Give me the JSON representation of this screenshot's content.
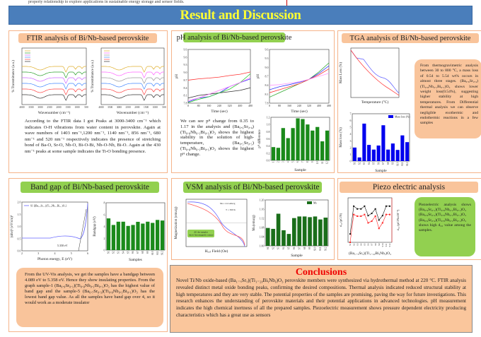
{
  "top_strip": "property relationship to explore applications in sustainable energy storage and sensor fields.",
  "banner": {
    "title": "Result and Discussion",
    "color": "#4a7ebb",
    "title_color": "#ffff33"
  },
  "ftir": {
    "title": "FTIR analysis of  Bi/Nb-based perovskite",
    "ylabel": "% Transmittance (a.u.)",
    "xlabel": "Wavenumber (cm⁻¹)",
    "xticks": [
      "4000",
      "3500",
      "3000",
      "2500",
      "2000",
      "1500",
      "1000",
      "500"
    ],
    "text": "According to the FTIR data I got Peaks at 3000-3400 cm⁻¹ which indicates O-H vibrations from water content in perovskite. Again at wave numbers of 1403 nm⁻¹,1200 nm⁻¹, 1140 nm⁻¹, 856 nm⁻¹, 680 nm⁻¹ and 520 nm⁻¹ respectively indicates the presence of stretching bond of Ba-O, Sr-O, Nb-O, Bi-O-Bi, Nb-O-Nb, Bi-O. Again at the 430 nm⁻¹ peaks at some sample indicates the Ti-O bonding presence."
  },
  "ph": {
    "title": "pH analysis of  Bi/Nb-based perovskite",
    "text": "We can see pᴴ change from 0.35 to 1.17 in the analysis and (Ba₀.₆Sr₀.₄)(Ti₀.₈Nb₀.₁Bi₀.₁)O₃ shows the highest stability in the solution of high-temperature, (Ba₀.₅Sr₀.₅)(Ti₀.₈Nb₀.₁Bi₀.₁)O₃ shows the highest pᴴ change."
  },
  "tga": {
    "title": "TGA analysis of  Bi/Nb-based perovskite",
    "text": "From thermogravimetric analysis between 30 to 800 °C, a mass loss of 0.54 to 5.54 wt% occurs in almost three stages. (Ba₀.₆Sr₀.₄)(Ti₀.₈Nb₀.₁Bi₀.₁)O₃ shows lower weight loss(0.54%), suggesting higher stability at high temperatures. From Differential thermal analysis we can observe negligible exothermic and endothermic reactions in a few samples"
  },
  "bandgap": {
    "title": "Band gap of  Bi/Nb-based perovskite",
    "legend": "S1 [(Ba₀.₉Sr₀.₁)(Ti₀.₈Nb₀.₁Bi₀.₁)O₃]",
    "annotation": "5.358 eV",
    "xlabel": "Photon energy, E (eV)",
    "ylabel": "(αhν)² (eV/cm)²",
    "xticks": [
      "2",
      "3",
      "4",
      "5",
      "6"
    ],
    "yticks": [
      "0.0",
      "0.5",
      "1.0",
      "1.5",
      "2.0"
    ],
    "text": "From the UV-Vis analysis, we get the samples have a bandgap between 4.089 eV to 5.358 eV. Hence they show insulating properties. From the graph sample-1 (Ba₀.₉Sr₀.₁)(Ti₀.₈Nb₀.₁Bi₀.₁)O₃ has the highest value of band gap and the sample-5 (Ba₀.₇Sr₀.₃)(Ti₀.₈Nb₀.₁Bi₀.₁)O₃ has the lowest band gap value. As all the samples have band gap over 4, so it would work as a moderate insulator"
  },
  "vsm": {
    "title": "VSM analysis of  Bi/Nb-based perovskite",
    "ylabel": "Magnetization (emu/g)",
    "xlabel": "Hₑₓₜ Field (Oe)",
    "note": "Mₛ=1.14 emu/g",
    "temp": "T = 300 K",
    "callout": "All the samples show ferromagnetic nature"
  },
  "piezo": {
    "title": "Piezo electric analysis",
    "ylabel_left": "d₃₃ (pC/N)",
    "ylabel_right": "d₃₃ (pC/Nx10⁻²)",
    "xlabel": "(Ba₁₋ₓSrₓ)(Ti₁₋₂ᵧBiᵧNbᵧ)O₃",
    "text": "Piezoelectric analysis shows (Ba₀.₉Sr₀.₁)(Ti₀.₈Nb₀.₁Bi₀.₁)O₃ (Ba₀.₈Sr₀.₂)(Ti₀.₈Nb₀.₁Bi₀.₁)O₃ (Ba₀.₆Sr₀.₄)(Ti₀.₈Nb₀.₁Bi₀.₁)O₃ shows high d₃₃ value among the samples."
  },
  "conclusions": {
    "title": "Conclusions",
    "text": "Novel Ti/Nb oxide-based (Ba₁₋ₓSrₓ)(Ti₁₋₂ᵧBiᵧNbᵧ)O₃ perovskite members were synthesized via hydrothermal method at 220 °C. FTIR analysis revealed distinct metal oxide bonding peaks, confirming the desired compositions. Thermal analysis indicated reduced structural stability at high temperatures and they are very stable. The potential properties of the samples are promising, paving the way for future investigations. This research enhances the understanding of perovskite materials and their potential applications in advanced technologies. pH measurement indicates the high chemical inertness of all the prepared samples. Piezoelectric measurement shows pressure dependent electricity producing characteristics which has a great use as sensors"
  },
  "chart_data": [
    {
      "id": "ph_bar",
      "type": "bar",
      "ylabel": "pᴴ difference",
      "xlabel": "Sample",
      "categories": [
        "1",
        "2",
        "3",
        "4",
        "5",
        "6",
        "7",
        "8",
        "9",
        "10",
        "11",
        "12"
      ],
      "values": [
        0.37,
        0.35,
        0.9,
        0.62,
        0.9,
        1.17,
        1.15,
        1.0,
        0.83,
        0.93,
        0.53,
        0.83
      ],
      "ylim": [
        0,
        1.2
      ],
      "yticks": [
        "0.0",
        "0.2",
        "0.4",
        "0.6",
        "0.8",
        "1.0",
        "1.2"
      ],
      "color": "#1a8a1a"
    },
    {
      "id": "tga_bar",
      "type": "bar",
      "ylabel": "Mass loss (%)",
      "xlabel": "Sample",
      "legend": "Mass loss (%)",
      "categories": [
        "S1",
        "S2",
        "S3",
        "S4",
        "S5",
        "S6",
        "S7",
        "S8",
        "S9",
        "S10",
        "S11",
        "S12"
      ],
      "values": [
        2.0,
        0.54,
        5.54,
        2.39,
        1.7,
        2.3,
        5.3,
        1.7,
        2.6,
        1.65,
        3.8,
        2.8
      ],
      "ylim": [
        0,
        7
      ],
      "yticks": [
        "0",
        "1",
        "2",
        "3",
        "4",
        "5",
        "6",
        "7"
      ],
      "color": "#0000ee"
    },
    {
      "id": "bandgap_bar",
      "type": "bar",
      "ylabel": "Bandgap (eV)",
      "xlabel": "Samples",
      "categories": [
        "S1",
        "S2",
        "S3",
        "S4",
        "S5",
        "S6",
        "S7",
        "S8",
        "S9",
        "S10",
        "S11",
        "S12"
      ],
      "values": [
        5.358,
        4.25,
        4.8,
        4.8,
        4.089,
        4.25,
        4.78,
        4.48,
        4.8,
        4.6,
        5.1,
        5.0
      ],
      "ylim": [
        0,
        8
      ],
      "yticks": [
        "0",
        "2",
        "4",
        "6",
        "8"
      ],
      "color": "#1a8a1a"
    },
    {
      "id": "vsm_bar",
      "type": "bar",
      "ylabel": "Mₛ(emu/g)",
      "xlabel": "Sample",
      "legend": "Ms",
      "categories": [
        "S1",
        "S2",
        "S3",
        "S4",
        "S5",
        "S6",
        "S7",
        "S8",
        "S9",
        "S10",
        "S11",
        "S12"
      ],
      "values": [
        1.078,
        1.074,
        1.14,
        1.068,
        1.052,
        1.121,
        1.128,
        1.128,
        1.125,
        1.128,
        1.115,
        1.123
      ],
      "ylim": [
        1.0,
        1.2
      ],
      "yticks": [
        "1.00",
        "1.04",
        "1.08",
        "1.12",
        "1.16",
        "1.20"
      ],
      "color": "#1a6e1a"
    },
    {
      "id": "ph_line_1",
      "type": "line",
      "xlabel": "Time (sec)",
      "ylabel": "pH",
      "xlim": [
        0,
        480
      ],
      "ylim": [
        7.8,
        9.9
      ],
      "xticks": [
        "0",
        "80",
        "160",
        "240",
        "320",
        "400",
        "480"
      ],
      "yticks": [
        "7.8",
        "8.1",
        "8.4",
        "8.7",
        "9.0",
        "9.3",
        "9.6",
        "9.9"
      ],
      "series": [
        {
          "color": "#333333",
          "x": [
            0,
            80,
            160,
            240,
            320,
            400,
            480
          ],
          "y": [
            8.0,
            8.1,
            8.15,
            8.2,
            8.25,
            8.3,
            8.4
          ]
        },
        {
          "color": "#ff3333",
          "x": [
            0,
            80,
            160,
            240,
            320,
            400,
            480
          ],
          "y": [
            8.7,
            8.75,
            8.78,
            8.82,
            8.88,
            8.93,
            9.02
          ]
        },
        {
          "color": "#3333ff",
          "x": [
            0,
            80,
            160,
            240,
            320,
            400,
            480
          ],
          "y": [
            7.85,
            8.0,
            8.05,
            8.2,
            8.45,
            8.6,
            8.75
          ]
        },
        {
          "color": "#33cc33",
          "x": [
            0,
            80,
            160,
            240,
            320,
            400,
            480
          ],
          "y": [
            7.82,
            7.95,
            8.05,
            8.2,
            8.35,
            8.6,
            8.95
          ]
        },
        {
          "color": "#ff77ff",
          "x": [
            0,
            80,
            160,
            240,
            320,
            400,
            480
          ],
          "y": [
            7.9,
            8.0,
            8.15,
            8.3,
            8.45,
            8.6,
            8.8
          ]
        }
      ]
    },
    {
      "id": "ph_line_2",
      "type": "line",
      "xlabel": "Time (sec)",
      "ylabel": "pH",
      "xlim": [
        0,
        480
      ],
      "ylim": [
        7.8,
        9.6
      ],
      "xticks": [
        "0",
        "80",
        "160",
        "240",
        "320",
        "400",
        "480"
      ],
      "yticks": [
        "7.8",
        "8.1",
        "8.4",
        "8.7",
        "9.0",
        "9.3",
        "9.6"
      ],
      "series": [
        {
          "color": "#33aa33",
          "x": [
            0,
            80,
            160,
            240,
            320,
            400,
            480
          ],
          "y": [
            8.0,
            8.15,
            8.3,
            8.45,
            8.6,
            8.85,
            9.15
          ]
        },
        {
          "color": "#3333ff",
          "x": [
            0,
            80,
            160,
            240,
            320,
            400,
            480
          ],
          "y": [
            8.25,
            8.35,
            8.42,
            8.5,
            8.6,
            8.8,
            9.05
          ]
        },
        {
          "color": "#ff3333",
          "x": [
            0,
            80,
            160,
            240,
            320,
            400,
            480
          ],
          "y": [
            8.15,
            8.25,
            8.35,
            8.45,
            8.6,
            8.75,
            8.95
          ]
        },
        {
          "color": "#ff99ff",
          "x": [
            0,
            80,
            160,
            240,
            320,
            400,
            480
          ],
          "y": [
            8.4,
            8.42,
            8.47,
            8.52,
            8.6,
            8.7,
            8.8
          ]
        }
      ]
    },
    {
      "id": "piezo_line",
      "type": "line",
      "categories": [
        "S1",
        "S2",
        "S3",
        "S4",
        "S5",
        "S6",
        "S7",
        "S8",
        "S9",
        "S10",
        "S11",
        "S12"
      ],
      "series": [
        {
          "color": "#111111",
          "values": [
            0.95,
            1.45,
            1.4,
            1.4,
            1.45,
            1.28,
            1.32,
            1.4,
            1.2,
            1.28,
            1.45,
            1.45
          ]
        },
        {
          "color": "#ff2222",
          "values": [
            0.8,
            1.3,
            1.27,
            1.27,
            1.3,
            1.15,
            1.18,
            1.27,
            1.05,
            1.15,
            1.3,
            1.3
          ]
        }
      ],
      "ylim": [
        0.8,
        1.6
      ]
    }
  ]
}
